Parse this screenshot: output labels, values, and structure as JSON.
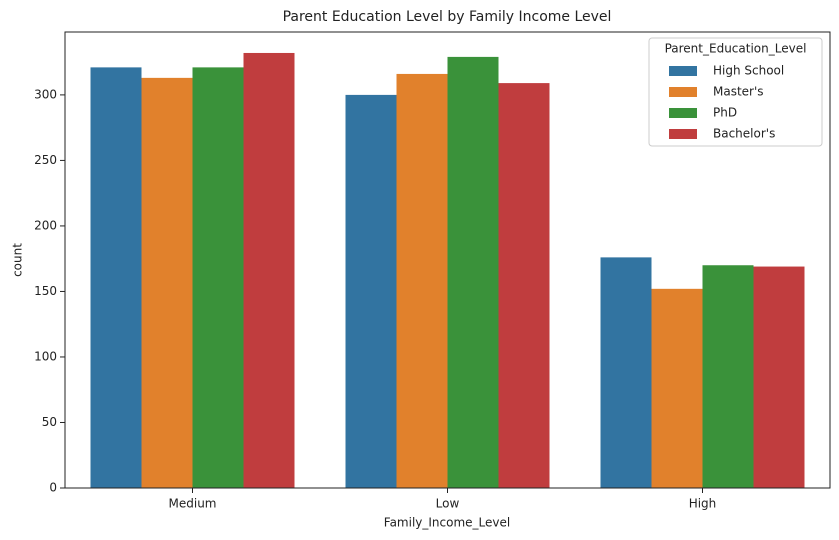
{
  "chart_data": {
    "type": "bar",
    "title": "Parent Education Level by Family Income Level",
    "x_label": "Family_Income_Level",
    "y_label": "count",
    "categories": [
      "Medium",
      "Low",
      "High"
    ],
    "legend_title": "Parent_Education_Level",
    "legend_position": "upper right",
    "series": [
      {
        "name": "High School",
        "color": "#3274a1",
        "values": [
          321,
          300,
          176
        ]
      },
      {
        "name": "Master's",
        "color": "#e1812c",
        "values": [
          313,
          316,
          152
        ]
      },
      {
        "name": "PhD",
        "color": "#3a923a",
        "values": [
          321,
          329,
          170
        ]
      },
      {
        "name": "Bachelor's",
        "color": "#c03d3e",
        "values": [
          332,
          309,
          169
        ]
      }
    ],
    "ylim": [
      0,
      348
    ],
    "yticks": [
      0,
      50,
      100,
      150,
      200,
      250,
      300
    ],
    "grid": false
  }
}
